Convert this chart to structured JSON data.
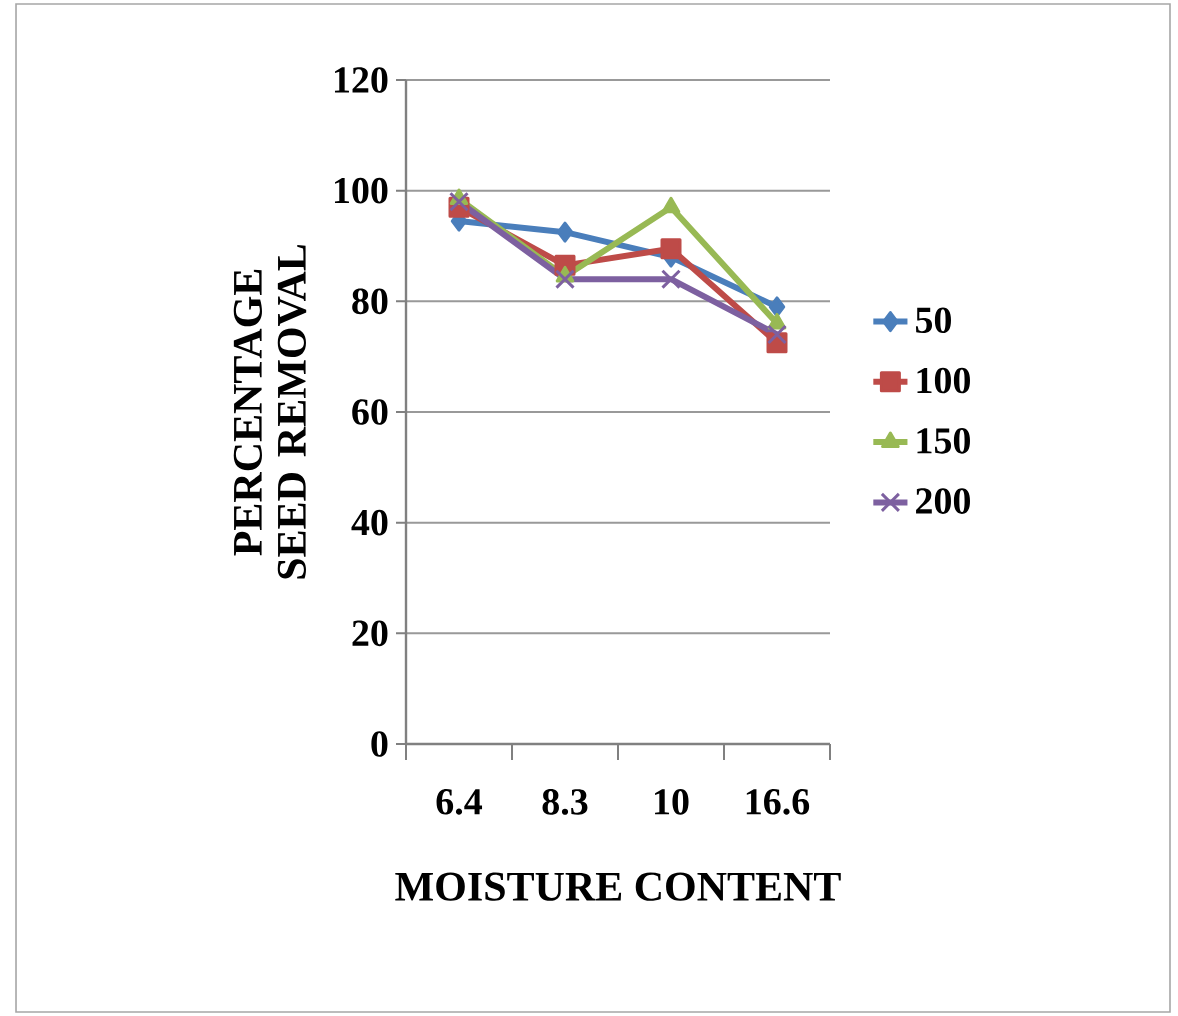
{
  "chart_data": {
    "type": "line",
    "xlabel": "MOISTURE CONTENT",
    "ylabel": "PERCENTAGE SEED REMOVAL",
    "categories": [
      "6.4",
      "8.3",
      "10",
      "16.6"
    ],
    "series": [
      {
        "name": "50",
        "color": "#4a7ebb",
        "marker": "diamond",
        "values": [
          94.5,
          92.5,
          88,
          79
        ]
      },
      {
        "name": "100",
        "color": "#be4b48",
        "marker": "square",
        "values": [
          97,
          86.5,
          89.5,
          72.5
        ]
      },
      {
        "name": "150",
        "color": "#98b954",
        "marker": "triangle",
        "values": [
          98.5,
          84.5,
          97,
          76
        ]
      },
      {
        "name": "200",
        "color": "#7d60a0",
        "marker": "cross",
        "values": [
          98,
          84,
          84,
          74
        ]
      }
    ],
    "ylim": [
      0,
      120
    ],
    "yticks": [
      0,
      20,
      40,
      60,
      80,
      100,
      120
    ],
    "grid": "y",
    "legend": "right"
  }
}
